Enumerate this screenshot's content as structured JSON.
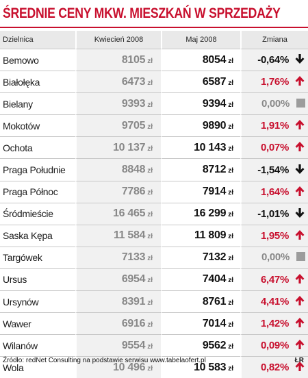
{
  "title": "ŚREDNIE CENY MKW. MIESZKAŃ W SPRZEDAŻY",
  "columns": {
    "district": "Dzielnica",
    "april": "Kwiecień 2008",
    "may": "Maj 2008",
    "change": "Zmiana"
  },
  "currency": "zł",
  "colors": {
    "accent": "#c8102e",
    "neutral": "#9c9c9c",
    "shade": "#f1f1f1",
    "header": "#e9e9e9"
  },
  "rows": [
    {
      "district": "Bemowo",
      "april": "8105",
      "may": "8054",
      "change": "-0,64%",
      "dir": "down"
    },
    {
      "district": "Białołęka",
      "april": "6473",
      "may": "6587",
      "change": "1,76%",
      "dir": "up"
    },
    {
      "district": "Bielany",
      "april": "9393",
      "may": "9394",
      "change": "0,00%",
      "dir": "flat"
    },
    {
      "district": "Mokotów",
      "april": "9705",
      "may": "9890",
      "change": "1,91%",
      "dir": "up"
    },
    {
      "district": "Ochota",
      "april": "10 137",
      "may": "10 143",
      "change": "0,07%",
      "dir": "up"
    },
    {
      "district": "Praga Południe",
      "april": "8848",
      "may": "8712",
      "change": "-1,54%",
      "dir": "down"
    },
    {
      "district": "Praga Północ",
      "april": "7786",
      "may": "7914",
      "change": "1,64%",
      "dir": "up"
    },
    {
      "district": "Śródmieście",
      "april": "16 465",
      "may": "16 299",
      "change": "-1,01%",
      "dir": "down"
    },
    {
      "district": "Saska Kępa",
      "april": "11 584",
      "may": "11 809",
      "change": "1,95%",
      "dir": "up"
    },
    {
      "district": "Targówek",
      "april": "7133",
      "may": "7132",
      "change": "0,00%",
      "dir": "flat"
    },
    {
      "district": "Ursus",
      "april": "6954",
      "may": "7404",
      "change": "6,47%",
      "dir": "up"
    },
    {
      "district": "Ursynów",
      "april": "8391",
      "may": "8761",
      "change": "4,41%",
      "dir": "up"
    },
    {
      "district": "Wawer",
      "april": "6916",
      "may": "7014",
      "change": "1,42%",
      "dir": "up"
    },
    {
      "district": "Wilanów",
      "april": "9554",
      "may": "9562",
      "change": "0,09%",
      "dir": "up"
    },
    {
      "district": "Wola",
      "april": "10 496",
      "may": "10 583",
      "change": "0,82%",
      "dir": "up"
    }
  ],
  "source": "Źródło: redNet Consulting na podstawie serwisu www.tabelaofert.pl",
  "credit": "ŁR"
}
